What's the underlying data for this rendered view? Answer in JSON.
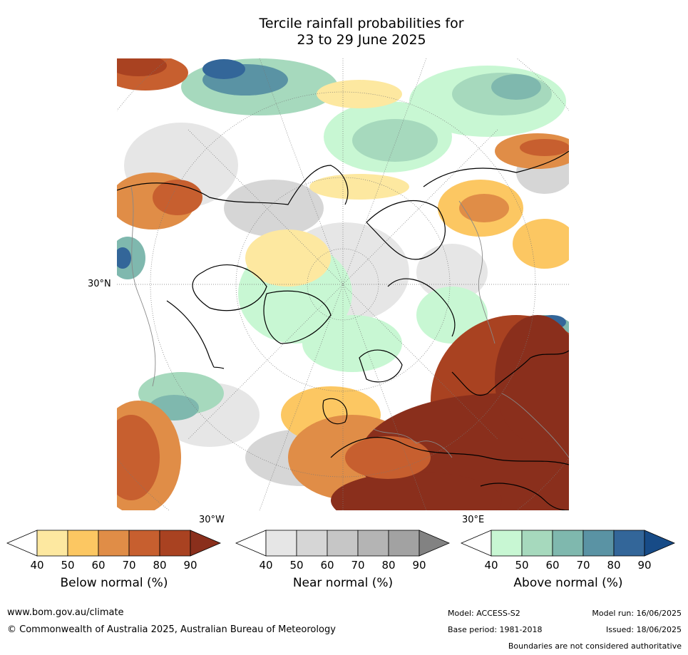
{
  "title": {
    "line1": "Tercile rainfall probabilities for",
    "line2": "23 to 29 June 2025"
  },
  "map": {
    "projection": "north polar stereographic",
    "lat_label": "30°N",
    "lon_labels": {
      "west": "30°W",
      "east": "30°E"
    }
  },
  "colorbars": [
    {
      "id": "below",
      "label": "Below normal (%)",
      "ticks": [
        "40",
        "50",
        "60",
        "70",
        "80",
        "90"
      ],
      "colors": [
        "#ffffff",
        "#fde8a0",
        "#fcc762",
        "#e08d47",
        "#c75f2f",
        "#a94221",
        "#8a2f1c"
      ]
    },
    {
      "id": "near",
      "label": "Near normal (%)",
      "ticks": [
        "40",
        "50",
        "60",
        "70",
        "80",
        "90"
      ],
      "colors": [
        "#ffffff",
        "#e6e6e6",
        "#d6d6d6",
        "#c6c6c6",
        "#b4b4b4",
        "#a2a2a2",
        "#828282"
      ]
    },
    {
      "id": "above",
      "label": "Above normal (%)",
      "ticks": [
        "40",
        "50",
        "60",
        "70",
        "80",
        "90"
      ],
      "colors": [
        "#ffffff",
        "#c8f7d3",
        "#a6d9bd",
        "#7fb8ae",
        "#5a93a4",
        "#336699",
        "#174b87"
      ]
    }
  ],
  "footer": {
    "website": "www.bom.gov.au/climate",
    "copyright": "© Commonwealth of Australia 2025, Australian Bureau of Meteorology",
    "model": "Model: ACCESS-S2",
    "base_period": "Base period: 1981-2018",
    "model_run": "Model run: 16/06/2025",
    "issued": "Issued: 18/06/2025",
    "disclaimer": "Boundaries are not considered authoritative"
  }
}
